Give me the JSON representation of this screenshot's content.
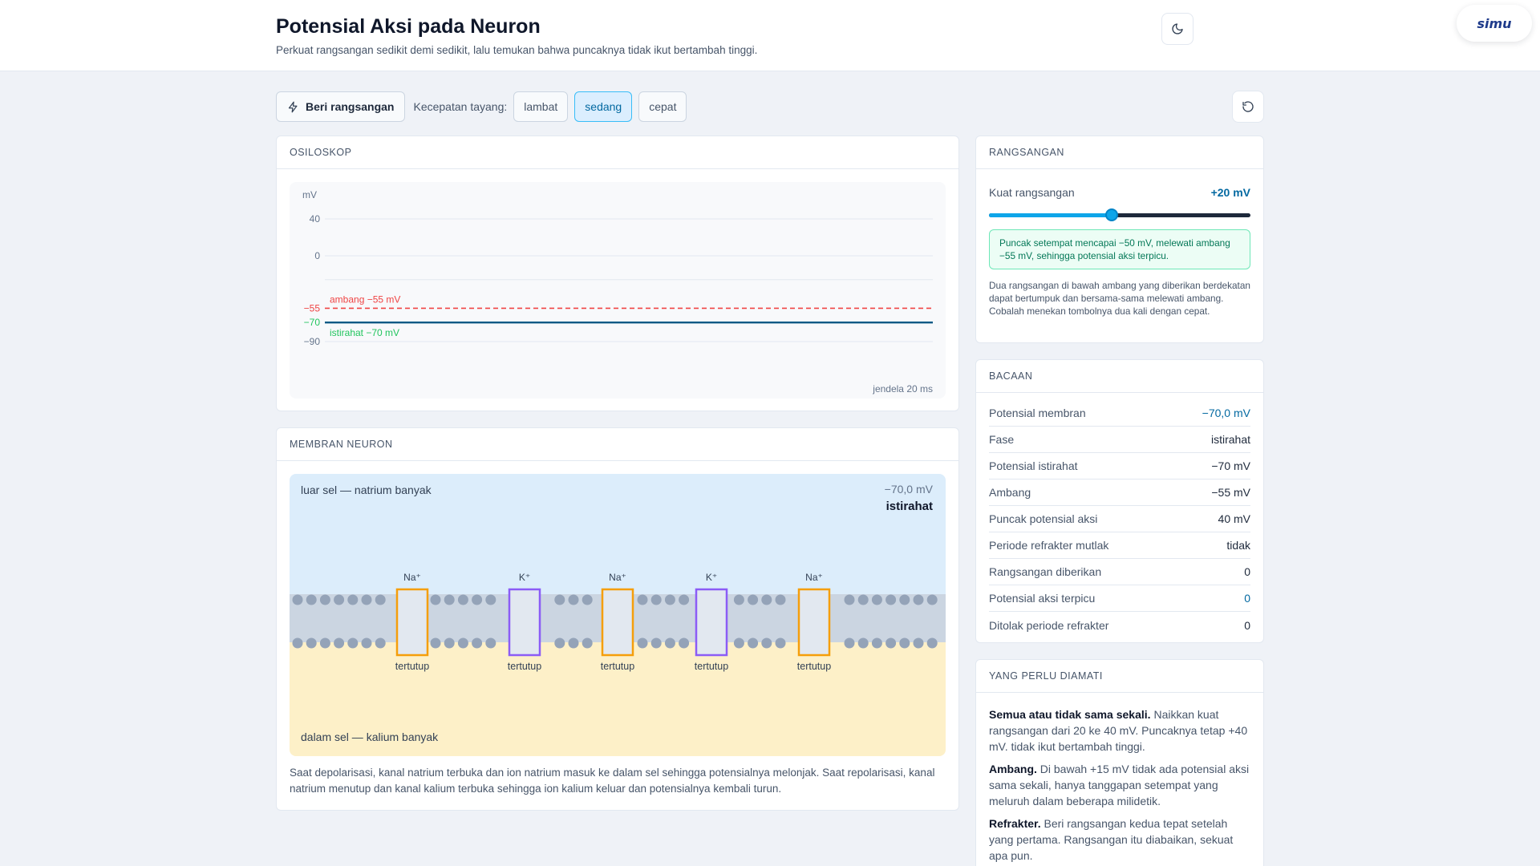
{
  "header": {
    "title": "Potensial Aksi pada Neuron",
    "subtitle": "Perkuat rangsangan sedikit demi sedikit, lalu temukan bahwa puncaknya tidak ikut bertambah tinggi.",
    "theme_icon": "moon-icon",
    "logo_text": "simu"
  },
  "toolbar": {
    "stimulate_label": "Beri rangsangan",
    "stimulate_icon": "lightning-icon",
    "speed_label": "Kecepatan tayang:",
    "speed_options": [
      "lambat",
      "sedang",
      "cepat"
    ],
    "speed_selected": "sedang",
    "reset_icon": "reset-icon"
  },
  "oscilloscope": {
    "title": "OSILOSKOP",
    "unit": "mV",
    "window_label": "jendela 20 ms",
    "threshold_label": "ambang −55 mV",
    "rest_label": "istirahat −70 mV",
    "chart_data": {
      "type": "line",
      "ylabel": "mV",
      "ylim": [
        -90,
        40
      ],
      "yticks": [
        "40",
        "0",
        "−55",
        "−70",
        "−90"
      ],
      "ytick_values": [
        40,
        0,
        -55,
        -70,
        -90
      ],
      "series": [
        {
          "values": [
            -70,
            -70,
            -70,
            -70,
            -70,
            -70,
            -70,
            -70,
            -70,
            -70,
            -70,
            -70,
            -70,
            -70,
            -70,
            -70,
            -70,
            -70,
            -70,
            -70,
            -70
          ],
          "color": "#075985"
        }
      ],
      "reference_lines": [
        {
          "label": "ambang −55 mV",
          "value": -55,
          "color": "#ef4444",
          "style": "dashed"
        },
        {
          "label": "istirahat −70 mV",
          "value": -70,
          "color": "#22c55e",
          "style": "label"
        }
      ],
      "grid": true
    }
  },
  "membrane": {
    "title": "MEMBRAN NEURON",
    "outside_label": "luar sel — natrium banyak",
    "inside_label": "dalam sel — kalium banyak",
    "potential": "−70,0 mV",
    "phase": "istirahat",
    "channels": [
      {
        "ion": "Na⁺",
        "state": "tertutup",
        "color": "#f59e0b"
      },
      {
        "ion": "K⁺",
        "state": "tertutup",
        "color": "#8b5cf6"
      },
      {
        "ion": "Na⁺",
        "state": "tertutup",
        "color": "#f59e0b"
      },
      {
        "ion": "K⁺",
        "state": "tertutup",
        "color": "#8b5cf6"
      },
      {
        "ion": "Na⁺",
        "state": "tertutup",
        "color": "#f59e0b"
      }
    ],
    "caption": "Saat depolarisasi, kanal natrium terbuka dan ion natrium masuk ke dalam sel sehingga potensialnya melonjak. Saat repolarisasi, kanal natrium menutup dan kanal kalium terbuka sehingga ion kalium keluar dan potensialnya kembali turun."
  },
  "stimulus": {
    "title": "RANGSANGAN",
    "label": "Kuat rangsangan",
    "value": "+20 mV",
    "slider_fraction": 0.47,
    "notice": "Puncak setempat mencapai −50 mV, melewati ambang −55 mV, sehingga potensial aksi terpicu.",
    "help": "Dua rangsangan di bawah ambang yang diberikan berdekatan dapat bertumpuk dan bersama-sama melewati ambang. Cobalah menekan tombolnya dua kali dengan cepat."
  },
  "readings": {
    "title": "BACAAN",
    "rows": [
      {
        "label": "Potensial membran",
        "value": "−70,0 mV"
      },
      {
        "label": "Fase",
        "value": "istirahat"
      },
      {
        "label": "Potensial istirahat",
        "value": "−70 mV"
      },
      {
        "label": "Ambang",
        "value": "−55 mV"
      },
      {
        "label": "Puncak potensial aksi",
        "value": "40 mV"
      },
      {
        "label": "Periode refrakter mutlak",
        "value": "tidak"
      },
      {
        "label": "Rangsangan diberikan",
        "value": "0"
      },
      {
        "label": "Potensial aksi terpicu",
        "value": "0"
      },
      {
        "label": "Ditolak periode refrakter",
        "value": "0"
      }
    ]
  },
  "observe": {
    "title": "YANG PERLU DIAMATI",
    "items": [
      {
        "head": "Semua atau tidak sama sekali.",
        "text": "Naikkan kuat rangsangan dari 20 ke 40 mV. Puncaknya tetap +40 mV. tidak ikut bertambah tinggi."
      },
      {
        "head": "Ambang.",
        "text": "Di bawah +15 mV tidak ada potensial aksi sama sekali, hanya tanggapan setempat yang meluruh dalam beberapa milidetik."
      },
      {
        "head": "Refrakter.",
        "text": "Beri rangsangan kedua tepat setelah yang pertama. Rangsangan itu diabaikan, sekuat apa pun."
      }
    ]
  }
}
